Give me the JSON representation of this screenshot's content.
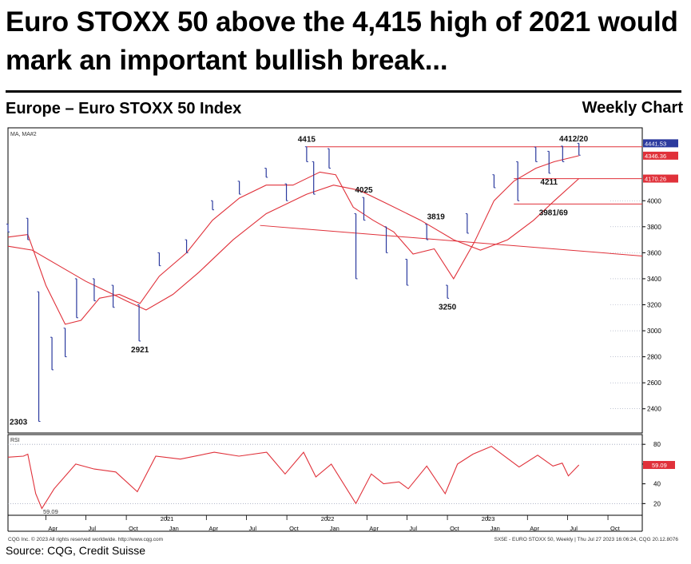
{
  "header": {
    "headline": "Euro STOXX 50 above the 4,415 high of 2021 would mark an important bullish break...",
    "chart_title": "Europe – Euro STOXX 50 Index",
    "chart_period": "Weekly Chart"
  },
  "footer": {
    "source": "Source: CQG, Credit Suisse",
    "copyright": "CQG Inc. © 2023 All rights reserved worldwide. http://www.cqg.com",
    "stamp": "SX5E - EURO STOXX 50, Weekly | Thu Jul 27 2023 16:06:24, CQG 20.12.8076"
  },
  "colors": {
    "price": "#2b3a9e",
    "ma": "#e0313a",
    "rsi": "#e0313a",
    "grid": "#9aa2b8",
    "axis": "#000000"
  },
  "chart_data": [
    {
      "type": "line",
      "panel": "price",
      "legend_label": "MA,  MA#2",
      "y_ticks": [
        2400,
        2600,
        2800,
        3000,
        3200,
        3400,
        3600,
        3800,
        4000
      ],
      "ylim": [
        2300,
        4450
      ],
      "x_tick_labels": [
        "Apr",
        "Jul",
        "Oct",
        "Jan",
        "Apr",
        "Jul",
        "Oct",
        "Jan",
        "Apr",
        "Jul",
        "Oct",
        "Jan",
        "Apr",
        "Jul",
        "Oct"
      ],
      "x_tick_dates": [
        "2020-04-01",
        "2020-07-01",
        "2020-10-01",
        "2021-01-01",
        "2021-04-01",
        "2021-07-01",
        "2021-10-01",
        "2022-01-01",
        "2022-04-01",
        "2022-07-01",
        "2022-10-01",
        "2023-01-01",
        "2023-04-01",
        "2023-07-01",
        "2023-10-01"
      ],
      "year_labels": [
        {
          "text": "2021",
          "date": "2021-01-01"
        },
        {
          "text": "2022",
          "date": "2022-01-01"
        },
        {
          "text": "2023",
          "date": "2023-01-01"
        }
      ],
      "xlim": [
        "2020-01-06",
        "2023-12-18"
      ],
      "price_tags": [
        {
          "value": 4441.53,
          "text": "4441.53",
          "color": "#2b3a9e"
        },
        {
          "value": 4346.36,
          "text": "4346.36",
          "color": "#e0313a"
        },
        {
          "value": 4170.26,
          "text": "4170.26",
          "color": "#e0313a"
        }
      ],
      "annotations": [
        {
          "text": "4415",
          "date": "2021-11-15",
          "value": 4415,
          "pos": "above"
        },
        {
          "text": "4412/20",
          "date": "2023-07-15",
          "value": 4420,
          "pos": "above"
        },
        {
          "text": "4211",
          "date": "2023-05-20",
          "value": 4211,
          "pos": "below"
        },
        {
          "text": "4025",
          "date": "2022-03-25",
          "value": 4025,
          "pos": "above"
        },
        {
          "text": "3819",
          "date": "2022-09-05",
          "value": 3819,
          "pos": "above"
        },
        {
          "text": "3981/69",
          "date": "2023-05-30",
          "value": 3975,
          "pos": "below"
        },
        {
          "text": "3250",
          "date": "2022-10-01",
          "value": 3250,
          "pos": "below"
        },
        {
          "text": "2921",
          "date": "2020-11-01",
          "value": 2921,
          "pos": "below"
        },
        {
          "text": "2303",
          "date": "2020-02-15",
          "value": 2303,
          "pos": "left"
        }
      ],
      "reference_lines": [
        {
          "type": "horizontal",
          "value": 4415,
          "from": "2021-11-15",
          "to": "2023-12-18",
          "color": "#e0313a"
        },
        {
          "type": "horizontal",
          "value": 4170,
          "from": "2023-03-01",
          "to": "2023-12-18",
          "color": "#e0313a"
        },
        {
          "type": "horizontal",
          "value": 3975,
          "from": "2023-03-01",
          "to": "2023-12-18",
          "color": "#e0313a"
        },
        {
          "type": "trendline",
          "from_date": "2021-08-01",
          "from_value": 3810,
          "to_date": "2023-12-18",
          "to_value": 3575,
          "color": "#e0313a"
        }
      ],
      "series": [
        {
          "name": "Price",
          "style": "bars",
          "points": [
            {
              "x": "2020-01-06",
              "high": 3820,
              "low": 3760
            },
            {
              "x": "2020-02-20",
              "high": 3865,
              "low": 3700
            },
            {
              "x": "2020-03-16",
              "high": 3300,
              "low": 2303
            },
            {
              "x": "2020-04-15",
              "high": 2950,
              "low": 2700
            },
            {
              "x": "2020-05-15",
              "high": 3020,
              "low": 2800
            },
            {
              "x": "2020-06-10",
              "high": 3400,
              "low": 3100
            },
            {
              "x": "2020-07-20",
              "high": 3400,
              "low": 3230
            },
            {
              "x": "2020-09-01",
              "high": 3350,
              "low": 3180
            },
            {
              "x": "2020-10-30",
              "high": 3200,
              "low": 2921
            },
            {
              "x": "2020-12-15",
              "high": 3600,
              "low": 3500
            },
            {
              "x": "2021-02-15",
              "high": 3700,
              "low": 3600
            },
            {
              "x": "2021-04-15",
              "high": 4000,
              "low": 3930
            },
            {
              "x": "2021-06-15",
              "high": 4150,
              "low": 4050
            },
            {
              "x": "2021-08-15",
              "high": 4250,
              "low": 4180
            },
            {
              "x": "2021-09-30",
              "high": 4130,
              "low": 4000
            },
            {
              "x": "2021-11-15",
              "high": 4415,
              "low": 4300
            },
            {
              "x": "2021-12-01",
              "high": 4300,
              "low": 4050
            },
            {
              "x": "2022-01-05",
              "high": 4400,
              "low": 4250
            },
            {
              "x": "2022-03-07",
              "high": 3900,
              "low": 3400
            },
            {
              "x": "2022-03-25",
              "high": 4025,
              "low": 3850
            },
            {
              "x": "2022-05-15",
              "high": 3800,
              "low": 3600
            },
            {
              "x": "2022-07-01",
              "high": 3550,
              "low": 3350
            },
            {
              "x": "2022-08-15",
              "high": 3819,
              "low": 3700
            },
            {
              "x": "2022-10-01",
              "high": 3350,
              "low": 3250
            },
            {
              "x": "2022-11-15",
              "high": 3900,
              "low": 3750
            },
            {
              "x": "2023-01-15",
              "high": 4200,
              "low": 4100
            },
            {
              "x": "2023-03-10",
              "high": 4300,
              "low": 4000
            },
            {
              "x": "2023-04-20",
              "high": 4412,
              "low": 4300
            },
            {
              "x": "2023-05-20",
              "high": 4380,
              "low": 4211
            },
            {
              "x": "2023-06-20",
              "high": 4420,
              "low": 4300
            },
            {
              "x": "2023-07-27",
              "high": 4441.53,
              "low": 4350
            }
          ]
        },
        {
          "name": "MA",
          "style": "line",
          "points": [
            [
              "2020-01-06",
              3720
            ],
            [
              "2020-02-20",
              3740
            ],
            [
              "2020-04-01",
              3350
            ],
            [
              "2020-05-15",
              3050
            ],
            [
              "2020-06-20",
              3080
            ],
            [
              "2020-08-01",
              3250
            ],
            [
              "2020-09-15",
              3280
            ],
            [
              "2020-11-01",
              3210
            ],
            [
              "2020-12-15",
              3420
            ],
            [
              "2021-02-15",
              3600
            ],
            [
              "2021-04-15",
              3850
            ],
            [
              "2021-06-15",
              4020
            ],
            [
              "2021-08-15",
              4120
            ],
            [
              "2021-10-15",
              4120
            ],
            [
              "2021-12-15",
              4220
            ],
            [
              "2022-01-20",
              4200
            ],
            [
              "2022-03-01",
              3950
            ],
            [
              "2022-04-15",
              3850
            ],
            [
              "2022-06-01",
              3760
            ],
            [
              "2022-07-15",
              3590
            ],
            [
              "2022-09-01",
              3630
            ],
            [
              "2022-10-15",
              3400
            ],
            [
              "2022-12-01",
              3680
            ],
            [
              "2023-01-15",
              4000
            ],
            [
              "2023-03-01",
              4150
            ],
            [
              "2023-04-20",
              4250
            ],
            [
              "2023-06-01",
              4300
            ],
            [
              "2023-07-27",
              4346.36
            ]
          ]
        },
        {
          "name": "MA#2",
          "style": "line",
          "points": [
            [
              "2020-01-06",
              3650
            ],
            [
              "2020-03-01",
              3620
            ],
            [
              "2020-05-01",
              3500
            ],
            [
              "2020-07-01",
              3380
            ],
            [
              "2020-09-01",
              3280
            ],
            [
              "2020-10-01",
              3230
            ],
            [
              "2020-11-15",
              3160
            ],
            [
              "2021-01-15",
              3280
            ],
            [
              "2021-03-15",
              3450
            ],
            [
              "2021-06-01",
              3700
            ],
            [
              "2021-08-15",
              3900
            ],
            [
              "2021-11-15",
              4050
            ],
            [
              "2022-01-15",
              4120
            ],
            [
              "2022-03-15",
              4080
            ],
            [
              "2022-05-15",
              3980
            ],
            [
              "2022-08-01",
              3850
            ],
            [
              "2022-10-15",
              3700
            ],
            [
              "2022-12-15",
              3620
            ],
            [
              "2023-02-15",
              3700
            ],
            [
              "2023-04-15",
              3850
            ],
            [
              "2023-06-01",
              4000
            ],
            [
              "2023-07-27",
              4170.26
            ]
          ]
        }
      ]
    },
    {
      "type": "line",
      "panel": "rsi",
      "legend_label": "RSI",
      "y_ticks": [
        20,
        40,
        60,
        80
      ],
      "ylim": [
        13,
        85
      ],
      "reference_lines": [
        {
          "value": 80,
          "style": "dotted"
        },
        {
          "value": 20,
          "style": "dotted"
        }
      ],
      "last_value": {
        "value": 59.09,
        "text": "59.09"
      },
      "series": [
        {
          "name": "RSI",
          "points": [
            [
              "2020-01-06",
              67
            ],
            [
              "2020-02-10",
              68
            ],
            [
              "2020-02-20",
              70
            ],
            [
              "2020-03-09",
              30
            ],
            [
              "2020-03-23",
              15
            ],
            [
              "2020-04-20",
              35
            ],
            [
              "2020-06-08",
              60
            ],
            [
              "2020-07-20",
              55
            ],
            [
              "2020-09-07",
              52
            ],
            [
              "2020-10-26",
              32
            ],
            [
              "2020-12-07",
              68
            ],
            [
              "2021-02-01",
              65
            ],
            [
              "2021-04-19",
              72
            ],
            [
              "2021-06-14",
              68
            ],
            [
              "2021-08-16",
              72
            ],
            [
              "2021-09-27",
              50
            ],
            [
              "2021-11-08",
              72
            ],
            [
              "2021-12-06",
              47
            ],
            [
              "2022-01-10",
              60
            ],
            [
              "2022-03-07",
              20
            ],
            [
              "2022-04-11",
              50
            ],
            [
              "2022-05-09",
              40
            ],
            [
              "2022-06-13",
              42
            ],
            [
              "2022-07-04",
              35
            ],
            [
              "2022-08-15",
              58
            ],
            [
              "2022-09-26",
              30
            ],
            [
              "2022-10-24",
              60
            ],
            [
              "2022-11-28",
              70
            ],
            [
              "2023-01-09",
              78
            ],
            [
              "2023-03-13",
              57
            ],
            [
              "2023-04-24",
              69
            ],
            [
              "2023-05-29",
              58
            ],
            [
              "2023-06-19",
              61
            ],
            [
              "2023-07-03",
              48
            ],
            [
              "2023-07-27",
              59.09
            ]
          ]
        }
      ]
    }
  ]
}
